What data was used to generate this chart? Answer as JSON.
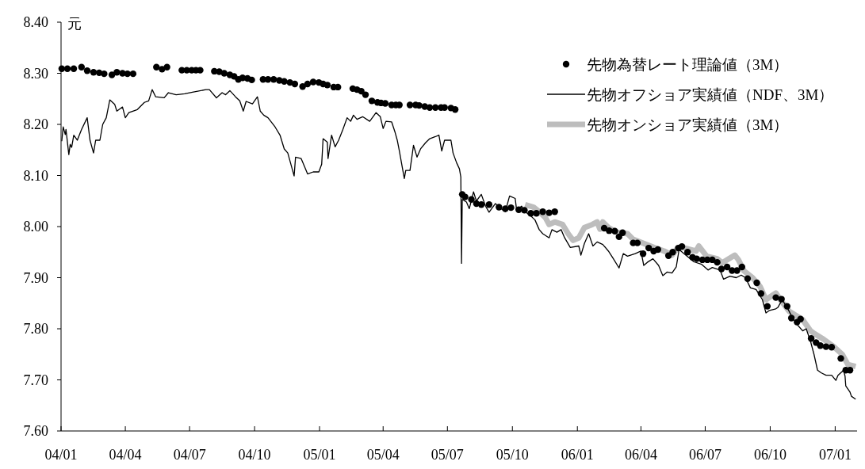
{
  "chart_data": {
    "type": "line",
    "ylabel": "元",
    "xlim": [
      "2004-01-01",
      "2007-02-01"
    ],
    "ylim": [
      7.6,
      8.4
    ],
    "xticks": [
      {
        "value": "2004-01-01",
        "label": "04/01"
      },
      {
        "value": "2004-04-01",
        "label": "04/04"
      },
      {
        "value": "2004-07-01",
        "label": "04/07"
      },
      {
        "value": "2004-10-01",
        "label": "04/10"
      },
      {
        "value": "2005-01-01",
        "label": "05/01"
      },
      {
        "value": "2005-04-01",
        "label": "05/04"
      },
      {
        "value": "2005-07-01",
        "label": "05/07"
      },
      {
        "value": "2005-10-01",
        "label": "05/10"
      },
      {
        "value": "2006-01-01",
        "label": "06/01"
      },
      {
        "value": "2006-04-01",
        "label": "06/04"
      },
      {
        "value": "2006-07-01",
        "label": "06/07"
      },
      {
        "value": "2006-10-01",
        "label": "06/10"
      },
      {
        "value": "2007-01-01",
        "label": "07/01"
      }
    ],
    "yticks": [
      {
        "value": 7.6,
        "label": "7.60"
      },
      {
        "value": 7.7,
        "label": "7.70"
      },
      {
        "value": 7.8,
        "label": "7.80"
      },
      {
        "value": 7.9,
        "label": "7.90"
      },
      {
        "value": 8.0,
        "label": "8.00"
      },
      {
        "value": 8.1,
        "label": "8.10"
      },
      {
        "value": 8.2,
        "label": "8.20"
      },
      {
        "value": 8.3,
        "label": "8.30"
      },
      {
        "value": 8.4,
        "label": "8.40"
      }
    ],
    "grid": false,
    "legend": "top right",
    "series": [
      {
        "name": "先物為替レート理論値（3M）",
        "type": "scatter",
        "marker": "circle",
        "color": "#000000",
        "x": [
          "2004-01-02",
          "2004-01-10",
          "2004-01-19",
          "2004-01-30",
          "2004-02-07",
          "2004-02-16",
          "2004-02-24",
          "2004-03-02",
          "2004-03-13",
          "2004-03-20",
          "2004-03-28",
          "2004-04-04",
          "2004-04-12",
          "2004-05-15",
          "2004-05-23",
          "2004-05-30",
          "2004-06-20",
          "2004-06-27",
          "2004-07-04",
          "2004-07-10",
          "2004-07-16",
          "2004-08-05",
          "2004-08-12",
          "2004-08-19",
          "2004-08-27",
          "2004-09-02",
          "2004-09-08",
          "2004-09-14",
          "2004-09-21",
          "2004-09-27",
          "2004-10-13",
          "2004-10-20",
          "2004-10-28",
          "2004-11-05",
          "2004-11-12",
          "2004-11-20",
          "2004-11-27",
          "2004-12-08",
          "2004-12-15",
          "2004-12-23",
          "2004-12-31",
          "2005-01-06",
          "2005-01-12",
          "2005-01-21",
          "2005-01-27",
          "2005-02-17",
          "2005-02-23",
          "2005-03-01",
          "2005-03-07",
          "2005-03-16",
          "2005-03-24",
          "2005-03-29",
          "2005-04-04",
          "2005-04-13",
          "2005-04-19",
          "2005-04-24",
          "2005-05-09",
          "2005-05-17",
          "2005-05-22",
          "2005-05-30",
          "2005-06-06",
          "2005-06-14",
          "2005-06-22",
          "2005-06-27",
          "2005-07-06",
          "2005-07-12",
          "2005-07-22",
          "2005-07-26",
          "2005-08-04",
          "2005-08-11",
          "2005-08-18",
          "2005-08-29",
          "2005-09-12",
          "2005-09-21",
          "2005-09-29",
          "2005-10-10",
          "2005-10-18",
          "2005-10-27",
          "2005-11-04",
          "2005-11-13",
          "2005-11-22",
          "2005-11-30",
          "2006-02-08",
          "2006-02-15",
          "2006-02-23",
          "2006-03-01",
          "2006-03-06",
          "2006-03-21",
          "2006-03-27",
          "2006-04-04",
          "2006-04-12",
          "2006-04-19",
          "2006-04-25",
          "2006-05-10",
          "2006-05-16",
          "2006-05-24",
          "2006-05-29",
          "2006-06-06",
          "2006-06-13",
          "2006-06-19",
          "2006-06-27",
          "2006-07-04",
          "2006-07-11",
          "2006-07-18",
          "2006-07-24",
          "2006-08-01",
          "2006-08-08",
          "2006-08-15",
          "2006-08-22",
          "2006-08-30",
          "2006-09-12",
          "2006-09-18",
          "2006-09-27",
          "2006-10-09",
          "2006-10-17",
          "2006-10-25",
          "2006-10-31",
          "2006-11-08",
          "2006-11-13",
          "2006-11-28",
          "2006-12-05",
          "2006-12-11",
          "2006-12-19",
          "2006-12-27",
          "2007-01-09",
          "2007-01-16",
          "2007-01-22"
        ],
        "values": [
          8.309,
          8.309,
          8.309,
          8.312,
          8.305,
          8.302,
          8.301,
          8.299,
          8.297,
          8.302,
          8.3,
          8.299,
          8.299,
          8.312,
          8.308,
          8.312,
          8.306,
          8.306,
          8.306,
          8.306,
          8.306,
          8.304,
          8.303,
          8.3,
          8.297,
          8.294,
          8.288,
          8.291,
          8.29,
          8.287,
          8.288,
          8.288,
          8.288,
          8.286,
          8.284,
          8.282,
          8.279,
          8.274,
          8.279,
          8.283,
          8.282,
          8.279,
          8.277,
          8.273,
          8.273,
          8.27,
          8.268,
          8.265,
          8.258,
          8.246,
          8.243,
          8.242,
          8.241,
          8.238,
          8.238,
          8.238,
          8.238,
          8.238,
          8.237,
          8.235,
          8.233,
          8.233,
          8.233,
          8.233,
          8.232,
          8.229,
          8.063,
          8.058,
          8.053,
          8.045,
          8.043,
          8.043,
          8.038,
          8.035,
          8.037,
          8.033,
          8.032,
          8.026,
          8.026,
          8.029,
          8.027,
          8.029,
          7.997,
          7.992,
          7.991,
          7.98,
          7.988,
          7.968,
          7.968,
          7.947,
          7.958,
          7.952,
          7.955,
          7.943,
          7.95,
          7.958,
          7.961,
          7.95,
          7.94,
          7.937,
          7.935,
          7.935,
          7.935,
          7.93,
          7.917,
          7.921,
          7.914,
          7.914,
          7.921,
          7.898,
          7.89,
          7.869,
          7.844,
          7.861,
          7.858,
          7.844,
          7.821,
          7.813,
          7.819,
          7.781,
          7.773,
          7.767,
          7.765,
          7.764,
          7.742,
          7.719,
          7.719
        ]
      },
      {
        "name": "先物オフショア実績値（NDF、3M）",
        "type": "line",
        "line_style": "solid",
        "color": "#000000",
        "x": [
          "2004-01-02",
          "2004-01-04",
          "2004-01-07",
          "2004-01-08",
          "2004-01-12",
          "2004-01-14",
          "2004-01-16",
          "2004-01-19",
          "2004-01-24",
          "2004-01-30",
          "2004-02-07",
          "2004-02-11",
          "2004-02-16",
          "2004-02-19",
          "2004-02-25",
          "2004-02-29",
          "2004-03-05",
          "2004-03-10",
          "2004-03-17",
          "2004-03-20",
          "2004-03-28",
          "2004-04-01",
          "2004-04-06",
          "2004-04-18",
          "2004-04-28",
          "2004-05-04",
          "2004-05-09",
          "2004-05-14",
          "2004-05-26",
          "2004-06-01",
          "2004-06-12",
          "2004-06-24",
          "2004-07-05",
          "2004-07-24",
          "2004-07-29",
          "2004-08-08",
          "2004-08-16",
          "2004-08-21",
          "2004-08-27",
          "2004-09-04",
          "2004-09-10",
          "2004-09-15",
          "2004-09-19",
          "2004-09-28",
          "2004-10-05",
          "2004-10-09",
          "2004-10-14",
          "2004-10-20",
          "2004-10-30",
          "2004-11-06",
          "2004-11-12",
          "2004-11-17",
          "2004-11-26",
          "2004-11-28",
          "2004-12-06",
          "2004-12-12",
          "2004-12-15",
          "2004-12-23",
          "2004-12-31",
          "2005-01-04",
          "2005-01-06",
          "2005-01-12",
          "2005-01-13",
          "2005-01-18",
          "2005-01-23",
          "2005-01-28",
          "2005-02-03",
          "2005-02-09",
          "2005-02-14",
          "2005-02-18",
          "2005-02-23",
          "2005-03-03",
          "2005-03-13",
          "2005-03-22",
          "2005-03-28",
          "2005-04-01",
          "2005-04-05",
          "2005-04-13",
          "2005-04-18",
          "2005-04-21",
          "2005-04-24",
          "2005-04-28",
          "2005-05-01",
          "2005-05-03",
          "2005-05-09",
          "2005-05-14",
          "2005-05-19",
          "2005-05-24",
          "2005-05-31",
          "2005-06-06",
          "2005-06-14",
          "2005-06-19",
          "2005-06-23",
          "2005-06-27",
          "2005-07-06",
          "2005-07-09",
          "2005-07-14",
          "2005-07-18",
          "2005-07-20",
          "2005-07-21",
          "2005-07-22",
          "2005-07-28",
          "2005-08-01",
          "2005-08-07",
          "2005-08-11",
          "2005-08-18",
          "2005-08-24",
          "2005-08-29",
          "2005-09-07",
          "2005-09-15",
          "2005-09-21",
          "2005-09-27",
          "2005-10-05",
          "2005-10-07",
          "2005-10-14",
          "2005-10-19",
          "2005-10-27",
          "2005-11-02",
          "2005-11-08",
          "2005-11-13",
          "2005-11-22",
          "2005-11-26",
          "2005-12-03",
          "2005-12-09",
          "2005-12-14",
          "2005-12-22",
          "2006-01-03",
          "2006-01-06",
          "2006-01-11",
          "2006-01-17",
          "2006-01-23",
          "2006-01-29",
          "2006-02-06",
          "2006-02-14",
          "2006-02-21",
          "2006-03-01",
          "2006-03-07",
          "2006-03-13",
          "2006-03-24",
          "2006-04-01",
          "2006-04-05",
          "2006-04-10",
          "2006-04-18",
          "2006-04-26",
          "2006-05-02",
          "2006-05-08",
          "2006-05-15",
          "2006-05-21",
          "2006-05-25",
          "2006-06-15",
          "2006-06-26",
          "2006-07-05",
          "2006-07-11",
          "2006-07-22",
          "2006-07-27",
          "2006-08-05",
          "2006-08-14",
          "2006-08-21",
          "2006-08-27",
          "2006-09-03",
          "2006-09-11",
          "2006-09-20",
          "2006-09-25",
          "2006-09-30",
          "2006-10-09",
          "2006-10-12",
          "2006-10-18",
          "2006-10-26",
          "2006-11-01",
          "2006-11-09",
          "2006-11-16",
          "2006-11-21",
          "2006-11-27",
          "2006-12-02",
          "2006-12-07",
          "2006-12-12",
          "2006-12-19",
          "2006-12-27",
          "2007-01-02",
          "2007-01-05",
          "2007-01-13",
          "2007-01-15",
          "2007-01-16",
          "2007-01-22",
          "2007-01-24",
          "2007-01-30"
        ],
        "values": [
          8.167,
          8.195,
          8.18,
          8.19,
          8.141,
          8.161,
          8.155,
          8.179,
          8.169,
          8.19,
          8.213,
          8.169,
          8.144,
          8.169,
          8.169,
          8.2,
          8.213,
          8.248,
          8.239,
          8.226,
          8.234,
          8.213,
          8.223,
          8.229,
          8.243,
          8.246,
          8.268,
          8.254,
          8.252,
          8.262,
          8.258,
          8.26,
          8.263,
          8.268,
          8.268,
          8.252,
          8.262,
          8.258,
          8.266,
          8.254,
          8.246,
          8.226,
          8.245,
          8.24,
          8.254,
          8.226,
          8.218,
          8.213,
          8.195,
          8.179,
          8.152,
          8.144,
          8.099,
          8.136,
          8.133,
          8.113,
          8.103,
          8.107,
          8.107,
          8.122,
          8.172,
          8.165,
          8.133,
          8.179,
          8.156,
          8.169,
          8.19,
          8.213,
          8.206,
          8.218,
          8.21,
          8.215,
          8.206,
          8.223,
          8.215,
          8.192,
          8.206,
          8.205,
          8.184,
          8.169,
          8.148,
          8.117,
          8.094,
          8.11,
          8.11,
          8.159,
          8.136,
          8.152,
          8.164,
          8.172,
          8.176,
          8.179,
          8.148,
          8.169,
          8.169,
          8.144,
          8.125,
          8.113,
          8.097,
          7.928,
          8.053,
          8.048,
          8.035,
          8.068,
          8.05,
          8.063,
          8.04,
          8.028,
          8.045,
          8.035,
          8.029,
          8.06,
          8.055,
          8.032,
          8.04,
          8.029,
          8.021,
          8.013,
          7.994,
          7.986,
          7.978,
          7.994,
          7.989,
          7.994,
          7.978,
          7.959,
          7.962,
          7.944,
          7.967,
          7.986,
          7.962,
          7.97,
          7.965,
          7.952,
          7.937,
          7.919,
          7.947,
          7.942,
          7.947,
          7.952,
          7.924,
          7.93,
          7.937,
          7.924,
          7.904,
          7.911,
          7.909,
          7.921,
          7.955,
          7.931,
          7.926,
          7.915,
          7.92,
          7.915,
          7.897,
          7.903,
          7.9,
          7.905,
          7.9,
          7.88,
          7.877,
          7.857,
          7.831,
          7.836,
          7.839,
          7.842,
          7.857,
          7.839,
          7.823,
          7.807,
          7.796,
          7.8,
          7.776,
          7.75,
          7.719,
          7.714,
          7.709,
          7.709,
          7.699,
          7.709,
          7.719,
          7.707,
          7.688,
          7.676,
          7.668,
          7.662
        ]
      },
      {
        "name": "先物オンショア実績値（3M）",
        "type": "line",
        "line_style": "solid",
        "color": "#bdbdbd",
        "x": [
          "2005-10-19",
          "2005-10-31",
          "2005-11-08",
          "2005-11-17",
          "2005-11-22",
          "2005-11-30",
          "2005-12-11",
          "2005-12-19",
          "2005-12-26",
          "2006-01-03",
          "2006-01-11",
          "2006-01-22",
          "2006-01-29",
          "2006-02-02",
          "2006-02-06",
          "2006-02-14",
          "2006-02-25",
          "2006-03-13",
          "2006-03-21",
          "2006-04-05",
          "2006-04-20",
          "2006-05-04",
          "2006-05-15",
          "2006-05-23",
          "2006-05-30",
          "2006-06-18",
          "2006-06-22",
          "2006-07-03",
          "2006-07-18",
          "2006-07-25",
          "2006-08-12",
          "2006-08-17",
          "2006-08-25",
          "2006-09-06",
          "2006-09-17",
          "2006-09-25",
          "2006-10-09",
          "2006-10-17",
          "2006-10-28",
          "2006-11-16",
          "2006-11-27",
          "2006-12-01",
          "2006-12-16",
          "2006-12-30",
          "2007-01-11",
          "2007-01-19",
          "2007-01-30"
        ],
        "values": [
          8.043,
          8.038,
          8.029,
          8.017,
          8.004,
          8.009,
          8.004,
          7.986,
          7.973,
          7.978,
          7.998,
          8.004,
          8.009,
          7.995,
          8.009,
          7.998,
          7.989,
          7.986,
          7.975,
          7.967,
          7.959,
          7.952,
          7.944,
          7.958,
          7.959,
          7.952,
          7.962,
          7.942,
          7.937,
          7.929,
          7.944,
          7.935,
          7.913,
          7.9,
          7.882,
          7.857,
          7.87,
          7.854,
          7.834,
          7.818,
          7.796,
          7.792,
          7.779,
          7.765,
          7.75,
          7.73,
          7.726
        ]
      }
    ]
  }
}
